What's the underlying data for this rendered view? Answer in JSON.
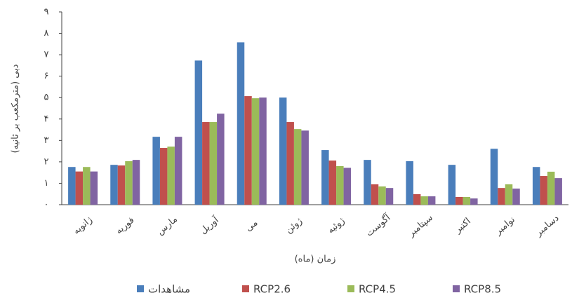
{
  "chart_data": {
    "type": "bar",
    "y_label": "دبی (مترمکعب بر ثانیه)",
    "x_label": "زمان (ماه)",
    "categories": [
      "ژانویه",
      "فوریه",
      "مارس",
      "آوریل",
      "می",
      "ژوئن",
      "ژوئیه",
      "آگوست",
      "سپتامبر",
      "اکتبر",
      "نوامبر",
      "دسامبر"
    ],
    "series": [
      {
        "name": "مشاهدات",
        "color": "#4a7ebb",
        "values": [
          1.76,
          1.86,
          3.17,
          6.73,
          7.58,
          5.0,
          2.55,
          2.09,
          2.03,
          1.86,
          2.61,
          1.76
        ]
      },
      {
        "name": "RCP2.6",
        "color": "#c0504d",
        "values": [
          1.55,
          1.83,
          2.65,
          3.86,
          5.07,
          3.86,
          2.06,
          0.95,
          0.49,
          0.36,
          0.78,
          1.34
        ]
      },
      {
        "name": "RCP4.5",
        "color": "#9bbb59",
        "values": [
          1.76,
          2.03,
          2.71,
          3.86,
          4.97,
          3.53,
          1.8,
          0.85,
          0.39,
          0.36,
          0.95,
          1.54
        ]
      },
      {
        "name": "RCP8.5",
        "color": "#8064a2",
        "values": [
          1.55,
          2.09,
          3.17,
          4.25,
          5.0,
          3.46,
          1.72,
          0.78,
          0.39,
          0.29,
          0.75,
          1.24
        ]
      }
    ],
    "ylim": [
      0,
      9
    ],
    "yticks": [
      {
        "value": 0,
        "label": "۰"
      },
      {
        "value": 1,
        "label": "۱"
      },
      {
        "value": 2,
        "label": "۲"
      },
      {
        "value": 3,
        "label": "۳"
      },
      {
        "value": 4,
        "label": "۴"
      },
      {
        "value": 5,
        "label": "۵"
      },
      {
        "value": 6,
        "label": "۶"
      },
      {
        "value": 7,
        "label": "۷"
      },
      {
        "value": 8,
        "label": "۸"
      },
      {
        "value": 9,
        "label": "۹"
      }
    ],
    "legend": "bottom"
  }
}
